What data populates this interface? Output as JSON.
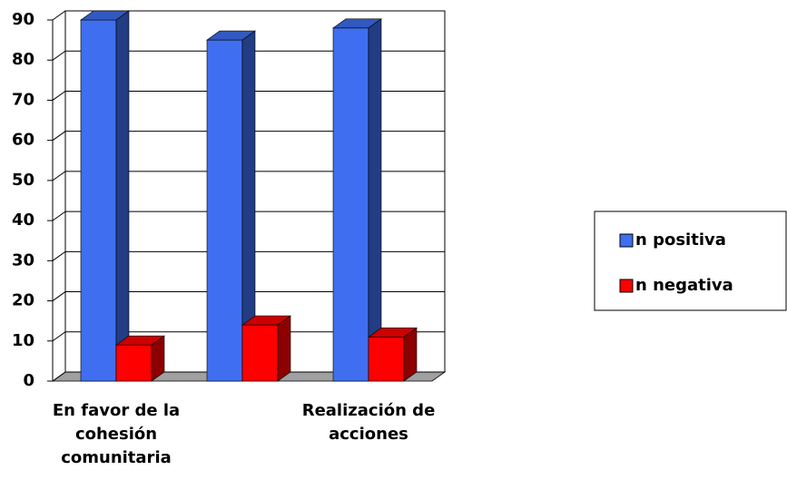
{
  "chart_data": {
    "type": "bar3d",
    "categories": [
      "En favor de la cohesión comunitaria",
      null,
      "Realización de acciones"
    ],
    "series": [
      {
        "name": "n positiva",
        "color": "#3f6ff0",
        "values": [
          90,
          85,
          88
        ]
      },
      {
        "name": "n negativa",
        "color": "#ff0000",
        "values": [
          9,
          14,
          11
        ]
      }
    ],
    "ylim": [
      0,
      90
    ],
    "yticks": [
      0,
      10,
      20,
      30,
      40,
      50,
      60,
      70,
      80,
      90
    ],
    "grid": true,
    "legend": "right"
  }
}
